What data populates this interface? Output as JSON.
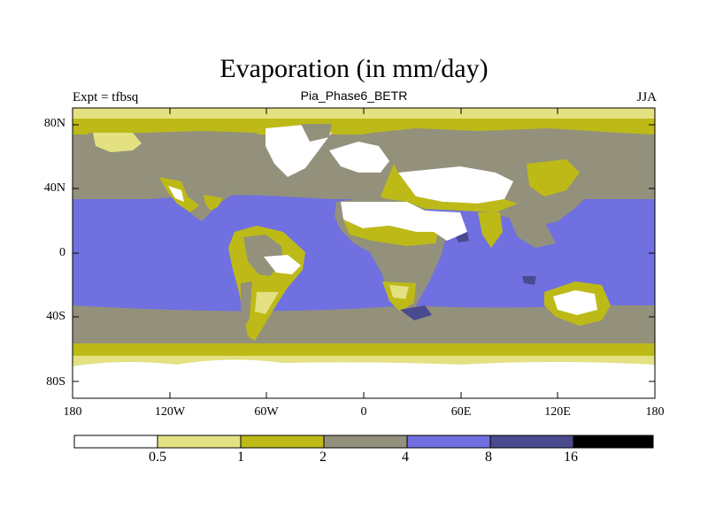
{
  "title": "Evaporation (in mm/day)",
  "subtitle": "Pia_Phase6_BETR",
  "left_label": "Expt = tfbsq",
  "right_label": "JJA",
  "lat_labels": [
    "80N",
    "40N",
    "0",
    "40S",
    "80S"
  ],
  "lon_labels": [
    "180",
    "120W",
    "60W",
    "0",
    "60E",
    "120E",
    "180"
  ],
  "colorbar": {
    "thresholds": [
      "0.5",
      "1",
      "2",
      "4",
      "8",
      "16"
    ],
    "colors": [
      "#ffffff",
      "#e3e182",
      "#bdba18",
      "#93917b",
      "#7070e0",
      "#4a4a8e",
      "#000000"
    ]
  },
  "regions": {
    "ocean_tropics": "#7070e0",
    "ocean_mid": "#93917b",
    "ocean_high": "#bdba18",
    "dry_land": "#ffffff",
    "moist_land": "#93917b",
    "max_spots": "#4a4a8e"
  }
}
